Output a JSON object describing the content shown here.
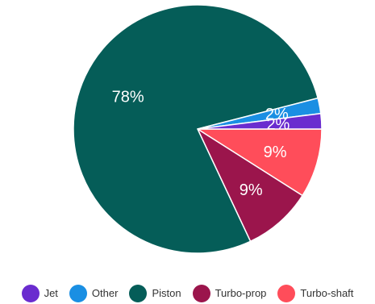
{
  "chart_data": {
    "type": "pie",
    "title": "",
    "slices": [
      {
        "label": "Jet",
        "value": 2,
        "display": "2%",
        "color": "#6a2ccf"
      },
      {
        "label": "Other",
        "value": 2,
        "display": "2%",
        "color": "#1a8fe3"
      },
      {
        "label": "Piston",
        "value": 78,
        "display": "78%",
        "color": "#055d58"
      },
      {
        "label": "Turbo-prop",
        "value": 9,
        "display": "9%",
        "color": "#9b154c"
      },
      {
        "label": "Turbo-shaft",
        "value": 9,
        "display": "9%",
        "color": "#ff4d5a"
      }
    ],
    "legend_position": "bottom"
  }
}
